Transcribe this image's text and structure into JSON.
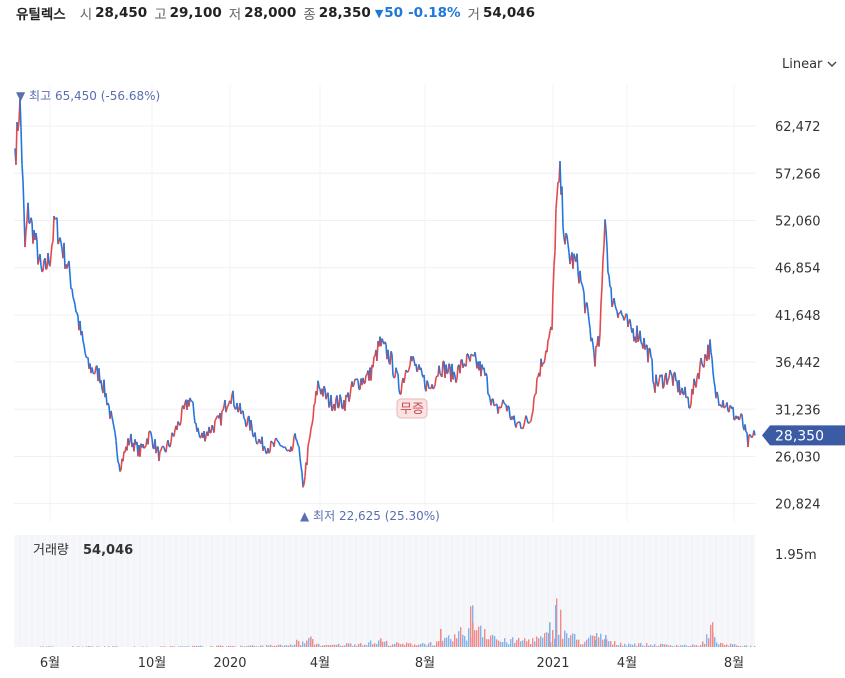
{
  "header": {
    "name": "유틸렉스",
    "open_label": "시",
    "open": "28,450",
    "high_label": "고",
    "high": "29,100",
    "low_label": "저",
    "low": "28,000",
    "close_label": "종",
    "close": "28,350",
    "change": "50",
    "change_pct": "-0.18%",
    "volume_label": "거",
    "volume": "54,046"
  },
  "scale_button": {
    "label": "Linear",
    "icon": "chevron-down-icon"
  },
  "colors": {
    "up": "#e34a4a",
    "down": "#2277dd",
    "price_tag": "#3b5ba5",
    "annotation": "#7a8ab5"
  },
  "chart_data": {
    "type": "line",
    "price_axis": {
      "ticks": [
        "62,472",
        "57,266",
        "52,060",
        "46,854",
        "41,648",
        "36,442",
        "31,236",
        "26,030",
        "20,824"
      ],
      "tick_values": [
        62472,
        57266,
        52060,
        46854,
        41648,
        36442,
        31236,
        26030,
        20824
      ],
      "range": [
        18800,
        67000
      ]
    },
    "x_axis": {
      "ticks": [
        "6월",
        "10월",
        "2020",
        "4월",
        "8월",
        "2021",
        "4월",
        "8월"
      ],
      "tick_index": [
        50,
        152,
        230,
        320,
        425,
        553,
        627,
        734
      ]
    },
    "price_label": "28,350",
    "high_annotation": "▼ 최고 65,450 (-56.68%)",
    "low_annotation": "▲ 최저 22,625 (25.30%)",
    "event_marker": "무증",
    "volume_label": "거래량",
    "volume_value": "54,046",
    "volume_axis": {
      "tick": "1.95m",
      "tick_value": 1950000,
      "max": 2350000
    },
    "price_keypoints": [
      [
        16,
        60000
      ],
      [
        20,
        65450
      ],
      [
        25,
        49000
      ],
      [
        28,
        53000
      ],
      [
        35,
        50000
      ],
      [
        42,
        46000
      ],
      [
        50,
        48000
      ],
      [
        55,
        52000
      ],
      [
        60,
        50000
      ],
      [
        70,
        46000
      ],
      [
        80,
        40000
      ],
      [
        88,
        36000
      ],
      [
        100,
        35000
      ],
      [
        108,
        32000
      ],
      [
        115,
        28000
      ],
      [
        120,
        25000
      ],
      [
        130,
        28000
      ],
      [
        140,
        26500
      ],
      [
        150,
        28500
      ],
      [
        160,
        26000
      ],
      [
        170,
        27500
      ],
      [
        180,
        30000
      ],
      [
        190,
        32500
      ],
      [
        200,
        28000
      ],
      [
        210,
        29000
      ],
      [
        220,
        30000
      ],
      [
        230,
        33000
      ],
      [
        240,
        31000
      ],
      [
        250,
        29500
      ],
      [
        260,
        27500
      ],
      [
        270,
        27000
      ],
      [
        280,
        27500
      ],
      [
        290,
        26000
      ],
      [
        297,
        28500
      ],
      [
        303,
        22625
      ],
      [
        310,
        28000
      ],
      [
        318,
        34000
      ],
      [
        330,
        32000
      ],
      [
        345,
        32000
      ],
      [
        355,
        34000
      ],
      [
        370,
        35000
      ],
      [
        380,
        38500
      ],
      [
        390,
        37000
      ],
      [
        400,
        33500
      ],
      [
        410,
        37000
      ],
      [
        420,
        35000
      ],
      [
        430,
        33500
      ],
      [
        440,
        36000
      ],
      [
        455,
        35000
      ],
      [
        465,
        36500
      ],
      [
        475,
        36500
      ],
      [
        485,
        35000
      ],
      [
        495,
        31000
      ],
      [
        505,
        32000
      ],
      [
        515,
        29500
      ],
      [
        530,
        30000
      ],
      [
        538,
        35000
      ],
      [
        545,
        37500
      ],
      [
        552,
        40000
      ],
      [
        556,
        53000
      ],
      [
        560,
        57000
      ],
      [
        565,
        50000
      ],
      [
        570,
        48000
      ],
      [
        578,
        47000
      ],
      [
        585,
        43000
      ],
      [
        595,
        37000
      ],
      [
        600,
        39000
      ],
      [
        605,
        53000
      ],
      [
        610,
        44000
      ],
      [
        620,
        42000
      ],
      [
        630,
        40000
      ],
      [
        640,
        39500
      ],
      [
        650,
        37000
      ],
      [
        655,
        34000
      ],
      [
        670,
        35000
      ],
      [
        680,
        33500
      ],
      [
        690,
        32000
      ],
      [
        700,
        36000
      ],
      [
        710,
        38000
      ],
      [
        715,
        33000
      ],
      [
        725,
        32000
      ],
      [
        735,
        30500
      ],
      [
        742,
        30000
      ],
      [
        748,
        27500
      ],
      [
        755,
        28350
      ]
    ],
    "volume_keypoints": [
      [
        16,
        5000
      ],
      [
        60,
        12000
      ],
      [
        100,
        15000
      ],
      [
        150,
        8000
      ],
      [
        200,
        20000
      ],
      [
        250,
        25000
      ],
      [
        290,
        40000
      ],
      [
        297,
        120000
      ],
      [
        303,
        80000
      ],
      [
        310,
        150000
      ],
      [
        318,
        60000
      ],
      [
        325,
        30000
      ],
      [
        380,
        110000
      ],
      [
        400,
        60000
      ],
      [
        440,
        90000
      ],
      [
        465,
        330000
      ],
      [
        470,
        680000
      ],
      [
        500,
        120000
      ],
      [
        540,
        180000
      ],
      [
        553,
        280000
      ],
      [
        556,
        1050000
      ],
      [
        562,
        350000
      ],
      [
        580,
        120000
      ],
      [
        600,
        240000
      ],
      [
        610,
        90000
      ],
      [
        650,
        50000
      ],
      [
        700,
        35000
      ],
      [
        712,
        380000
      ],
      [
        720,
        60000
      ],
      [
        755,
        15000
      ]
    ],
    "volume_spikes": [
      [
        470,
        200000
      ],
      [
        472,
        520000
      ],
      [
        440,
        380000
      ],
      [
        555,
        880000
      ],
      [
        549,
        520000
      ],
      [
        605,
        250000
      ],
      [
        712,
        300000
      ],
      [
        595,
        150000
      ],
      [
        380,
        180000
      ],
      [
        310,
        220000
      ]
    ],
    "grid": true
  }
}
